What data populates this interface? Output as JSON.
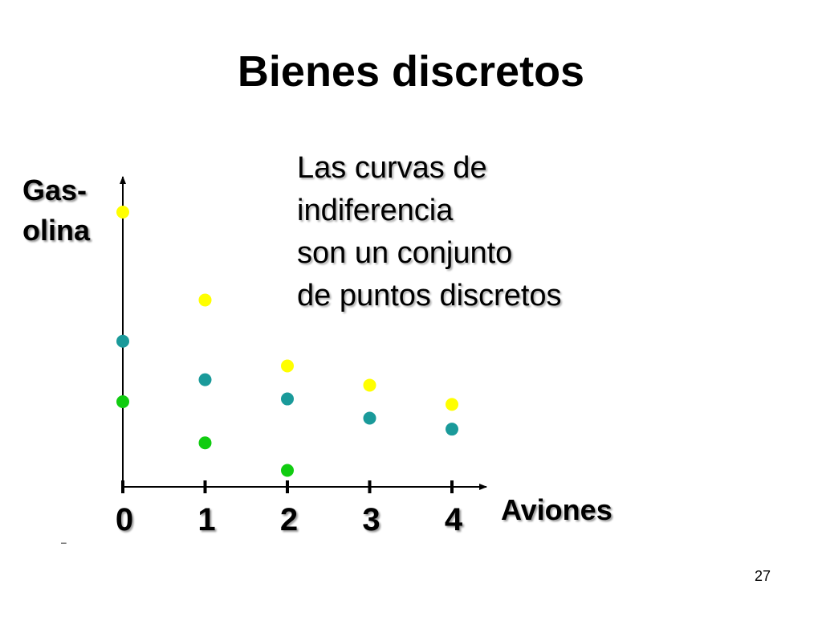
{
  "slide": {
    "title": "Bienes discretos",
    "note_lines": [
      "Las curvas de",
      "indiferencia",
      "son un conjunto",
      "de puntos discretos"
    ],
    "dash": "–",
    "page_number": "27"
  },
  "chart_data": {
    "type": "scatter",
    "title": "",
    "xlabel": "Aviones",
    "ylabel_lines": [
      "Gas-",
      "olina"
    ],
    "x_ticks": [
      "0",
      "1",
      "2",
      "3",
      "4"
    ],
    "xlim": [
      0,
      4.4
    ],
    "ylim": [
      0,
      10
    ],
    "series": [
      {
        "color": "#ffff00",
        "x": [
          0,
          1,
          2,
          3,
          4
        ],
        "y": [
          10,
          6.8,
          4.4,
          3.7,
          3.0
        ]
      },
      {
        "color": "#1a9a9a",
        "x": [
          0,
          1,
          2,
          3,
          4
        ],
        "y": [
          5.3,
          3.9,
          3.2,
          2.5,
          2.1
        ]
      },
      {
        "color": "#11cc11",
        "x": [
          0,
          1,
          2
        ],
        "y": [
          3.1,
          1.6,
          0.6
        ]
      }
    ],
    "grid": false
  }
}
